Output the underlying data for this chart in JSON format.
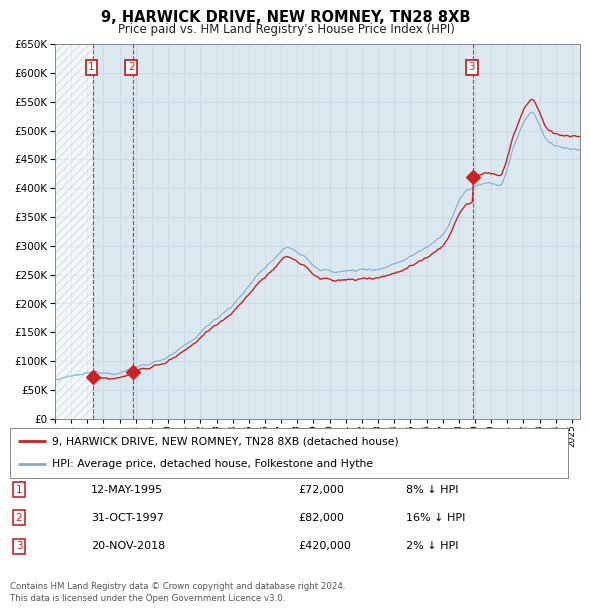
{
  "title": "9, HARWICK DRIVE, NEW ROMNEY, TN28 8XB",
  "subtitle": "Price paid vs. HM Land Registry's House Price Index (HPI)",
  "ylim": [
    0,
    650000
  ],
  "yticks": [
    0,
    50000,
    100000,
    150000,
    200000,
    250000,
    300000,
    350000,
    400000,
    450000,
    500000,
    550000,
    600000,
    650000
  ],
  "xlim_start": 1993.0,
  "xlim_end": 2025.5,
  "sale_years_float": [
    1995.36,
    1997.83,
    2018.89
  ],
  "sale_prices": [
    72000,
    82000,
    420000
  ],
  "sale_labels": [
    "1",
    "2",
    "3"
  ],
  "legend_address": "9, HARWICK DRIVE, NEW ROMNEY, TN28 8XB (detached house)",
  "legend_hpi": "HPI: Average price, detached house, Folkestone and Hythe",
  "table_entries": [
    {
      "label": "1",
      "date": "12-MAY-1995",
      "price": "£72,000",
      "hpi": "8% ↓ HPI"
    },
    {
      "label": "2",
      "date": "31-OCT-1997",
      "price": "£82,000",
      "hpi": "16% ↓ HPI"
    },
    {
      "label": "3",
      "date": "20-NOV-2018",
      "price": "£420,000",
      "hpi": "2% ↓ HPI"
    }
  ],
  "footnote": "Contains HM Land Registry data © Crown copyright and database right 2024.\nThis data is licensed under the Open Government Licence v3.0.",
  "hpi_color": "#7bafd4",
  "price_color": "#cc2222",
  "grid_color": "#c8d8e8",
  "bg_color": "#dce8f0",
  "hatch_color": "#c0ccd8"
}
